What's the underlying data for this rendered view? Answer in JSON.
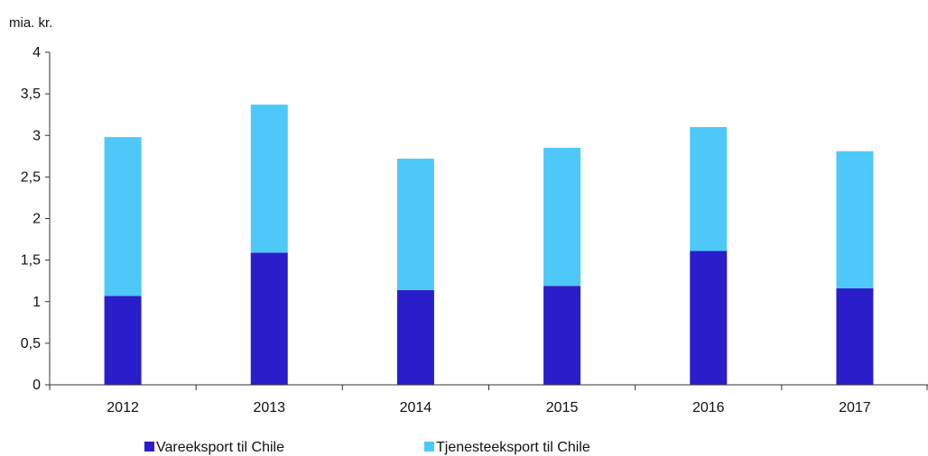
{
  "chart_data": {
    "type": "bar",
    "stacked": true,
    "unit_label": "mia. kr.",
    "categories": [
      "2012",
      "2013",
      "2014",
      "2015",
      "2016",
      "2017"
    ],
    "series": [
      {
        "name": "Vareeksport til Chile",
        "color": "#2a1ecb",
        "values": [
          1.07,
          1.59,
          1.14,
          1.19,
          1.61,
          1.16
        ]
      },
      {
        "name": "Tjenesteeksport til Chile",
        "color": "#4dc8f9",
        "values": [
          1.91,
          1.78,
          1.58,
          1.66,
          1.49,
          1.65
        ]
      }
    ],
    "ylim": [
      0,
      4
    ],
    "yticks": [
      "0",
      "0,5",
      "1",
      "1,5",
      "2",
      "2,5",
      "3",
      "3,5",
      "4"
    ],
    "grid": false,
    "legend": "bottom"
  }
}
